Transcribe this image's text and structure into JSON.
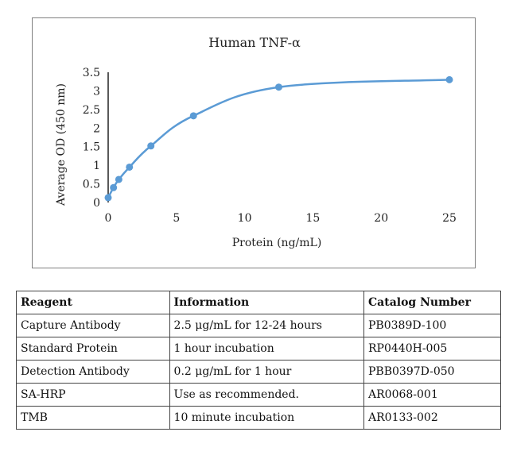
{
  "chart_data": {
    "type": "scatter",
    "title": "Human  TNF-α",
    "xlabel": "Protein (ng/mL)",
    "ylabel": "Average OD (450 nm)",
    "xlim": [
      0,
      25
    ],
    "ylim": [
      0,
      3.5
    ],
    "xticks": [
      0,
      5,
      10,
      15,
      20,
      25
    ],
    "yticks": [
      0,
      0.5,
      1,
      1.5,
      2,
      2.5,
      3,
      3.5
    ],
    "ytick_labels": [
      "0",
      "0.5",
      "1",
      "1.5",
      "2",
      "2.5",
      "3",
      "3.5"
    ],
    "grid": false,
    "series": [
      {
        "x": [
          0,
          0.39,
          0.78,
          1.56,
          3.13,
          6.25,
          12.5,
          25
        ],
        "y": [
          0.13,
          0.4,
          0.62,
          0.95,
          1.52,
          2.33,
          3.1,
          3.3
        ],
        "smooth_line": true
      }
    ],
    "colors": {
      "series": "#5b9bd5",
      "axis": "#000000"
    }
  },
  "table": {
    "headers": [
      "Reagent",
      "Information",
      "Catalog Number"
    ],
    "rows": [
      [
        "Capture Antibody",
        "2.5 μg/mL for 12-24 hours",
        "PB0389D-100"
      ],
      [
        "Standard Protein",
        "1 hour incubation",
        "RP0440H-005"
      ],
      [
        "Detection Antibody",
        "0.2 μg/mL for 1 hour",
        "PBB0397D-050"
      ],
      [
        "SA-HRP",
        "Use as recommended.",
        "AR0068-001"
      ],
      [
        "TMB",
        "10 minute incubation",
        "AR0133-002"
      ]
    ]
  }
}
